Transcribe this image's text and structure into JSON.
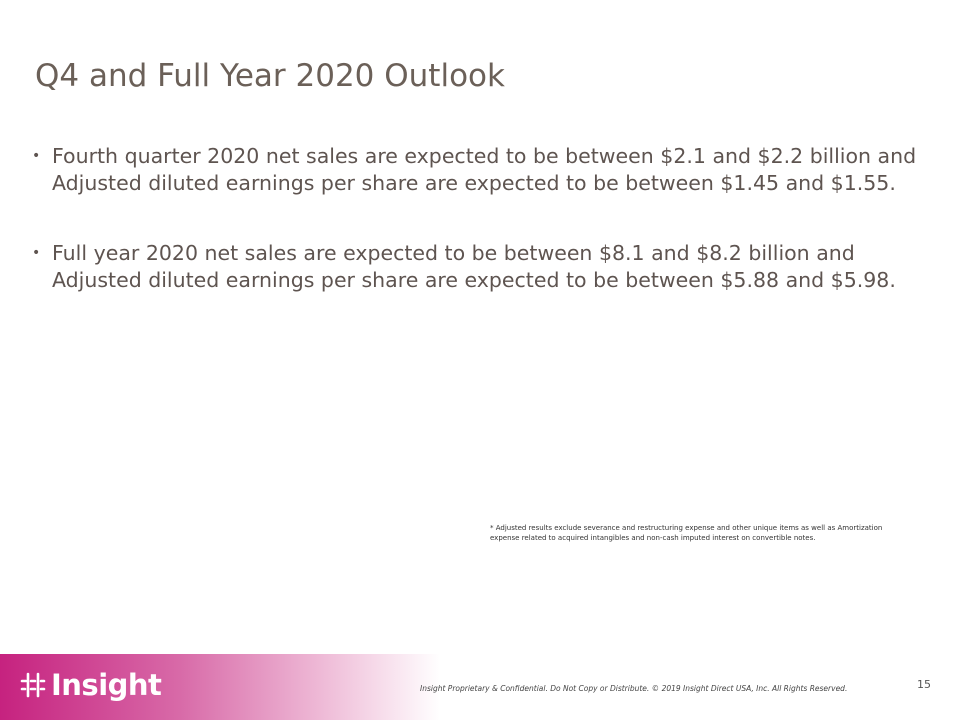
{
  "slide": {
    "title": "Q4 and Full Year 2020 Outlook",
    "bullets": [
      "Fourth quarter 2020 net sales are expected to be between $2.1 and $2.2 billion and Adjusted diluted earnings per share are expected to be between $1.45 and $1.55.",
      "Full year 2020 net sales are expected to be between $8.1 and $8.2 billion and Adjusted diluted earnings per share are expected to be between $5.88 and $5.98."
    ],
    "footnote": "* Adjusted results exclude severance and restructuring expense and other unique items as well as Amortization expense related to acquired intangibles and non-cash imputed interest on convertible notes.",
    "footer": {
      "logo": "Insight",
      "confidential": "Insight Proprietary & Confidential. Do Not Copy or Distribute.  © 2019 Insight Direct USA, Inc.  All Rights Reserved.",
      "page_number": "15"
    }
  }
}
